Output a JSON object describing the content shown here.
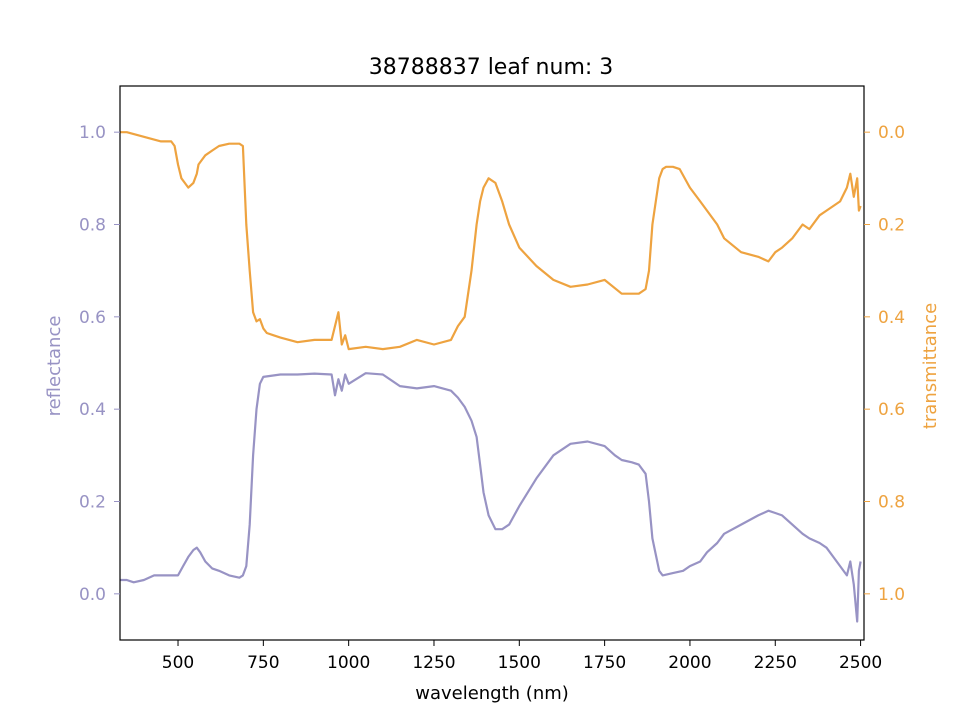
{
  "chart_data": {
    "type": "line",
    "title": "38788837 leaf num: 3",
    "xlabel": "wavelength (nm)",
    "xlim": [
      330,
      2510
    ],
    "xticks": [
      500,
      750,
      1000,
      1250,
      1500,
      1750,
      2000,
      2250,
      2500
    ],
    "left_axis": {
      "label": "reflectance",
      "ylim": [
        -0.1,
        1.1
      ],
      "ticks": [
        0.0,
        0.2,
        0.4,
        0.6,
        0.8,
        1.0
      ],
      "color": "#9893c4"
    },
    "right_axis": {
      "label": "transmittance",
      "ylim": [
        1.1,
        -0.1
      ],
      "inverted": true,
      "ticks": [
        0.0,
        0.2,
        0.4,
        0.6,
        0.8,
        1.0
      ],
      "color": "#eea340"
    },
    "grid": false,
    "series": [
      {
        "axis": "left",
        "color": "#9893c4",
        "x": [
          330,
          350,
          370,
          400,
          430,
          470,
          500,
          515,
          530,
          545,
          555,
          565,
          580,
          600,
          620,
          650,
          680,
          690,
          700,
          710,
          720,
          730,
          740,
          750,
          800,
          850,
          900,
          950,
          960,
          970,
          980,
          990,
          1000,
          1050,
          1100,
          1150,
          1200,
          1250,
          1300,
          1320,
          1340,
          1360,
          1375,
          1385,
          1395,
          1410,
          1430,
          1450,
          1470,
          1500,
          1550,
          1600,
          1650,
          1700,
          1750,
          1780,
          1800,
          1830,
          1850,
          1870,
          1880,
          1890,
          1900,
          1910,
          1920,
          1950,
          1980,
          2000,
          2030,
          2050,
          2080,
          2100,
          2150,
          2200,
          2230,
          2250,
          2270,
          2300,
          2330,
          2350,
          2380,
          2400,
          2420,
          2440,
          2460,
          2470,
          2480,
          2490,
          2495,
          2500
        ],
        "y": [
          0.03,
          0.03,
          0.025,
          0.03,
          0.04,
          0.04,
          0.04,
          0.06,
          0.08,
          0.095,
          0.1,
          0.09,
          0.07,
          0.055,
          0.05,
          0.04,
          0.035,
          0.04,
          0.06,
          0.15,
          0.3,
          0.4,
          0.455,
          0.47,
          0.475,
          0.475,
          0.477,
          0.475,
          0.43,
          0.465,
          0.44,
          0.475,
          0.455,
          0.478,
          0.475,
          0.45,
          0.445,
          0.45,
          0.44,
          0.425,
          0.405,
          0.375,
          0.34,
          0.28,
          0.22,
          0.17,
          0.14,
          0.14,
          0.15,
          0.19,
          0.25,
          0.3,
          0.325,
          0.33,
          0.32,
          0.3,
          0.29,
          0.285,
          0.28,
          0.26,
          0.2,
          0.12,
          0.085,
          0.05,
          0.04,
          0.045,
          0.05,
          0.06,
          0.07,
          0.09,
          0.11,
          0.13,
          0.15,
          0.17,
          0.18,
          0.175,
          0.17,
          0.15,
          0.13,
          0.12,
          0.11,
          0.1,
          0.08,
          0.06,
          0.04,
          0.07,
          0.02,
          -0.06,
          0.05,
          0.07
        ]
      },
      {
        "axis": "right",
        "color": "#eea340",
        "x": [
          330,
          350,
          400,
          450,
          480,
          490,
          500,
          510,
          520,
          530,
          545,
          555,
          560,
          570,
          580,
          600,
          620,
          650,
          680,
          690,
          700,
          710,
          720,
          730,
          740,
          750,
          760,
          780,
          800,
          850,
          900,
          950,
          970,
          980,
          990,
          1000,
          1050,
          1100,
          1150,
          1200,
          1250,
          1300,
          1320,
          1340,
          1360,
          1375,
          1385,
          1395,
          1410,
          1430,
          1450,
          1470,
          1500,
          1550,
          1600,
          1650,
          1700,
          1750,
          1800,
          1830,
          1850,
          1870,
          1880,
          1890,
          1900,
          1910,
          1920,
          1930,
          1950,
          1970,
          2000,
          2030,
          2050,
          2080,
          2100,
          2150,
          2200,
          2230,
          2250,
          2270,
          2300,
          2330,
          2350,
          2380,
          2400,
          2420,
          2440,
          2460,
          2470,
          2480,
          2490,
          2495,
          2500
        ],
        "y": [
          0.0,
          0.0,
          0.01,
          0.02,
          0.02,
          0.03,
          0.07,
          0.1,
          0.11,
          0.12,
          0.11,
          0.09,
          0.07,
          0.06,
          0.05,
          0.04,
          0.03,
          0.025,
          0.025,
          0.03,
          0.2,
          0.3,
          0.39,
          0.41,
          0.405,
          0.425,
          0.435,
          0.44,
          0.445,
          0.455,
          0.45,
          0.45,
          0.39,
          0.46,
          0.44,
          0.47,
          0.465,
          0.47,
          0.465,
          0.45,
          0.46,
          0.45,
          0.42,
          0.4,
          0.3,
          0.2,
          0.15,
          0.12,
          0.1,
          0.11,
          0.15,
          0.2,
          0.25,
          0.29,
          0.32,
          0.335,
          0.33,
          0.32,
          0.35,
          0.35,
          0.35,
          0.34,
          0.3,
          0.2,
          0.15,
          0.1,
          0.08,
          0.075,
          0.075,
          0.08,
          0.12,
          0.15,
          0.17,
          0.2,
          0.23,
          0.26,
          0.27,
          0.28,
          0.26,
          0.25,
          0.23,
          0.2,
          0.21,
          0.18,
          0.17,
          0.16,
          0.15,
          0.12,
          0.09,
          0.14,
          0.1,
          0.17,
          0.16
        ]
      }
    ]
  }
}
